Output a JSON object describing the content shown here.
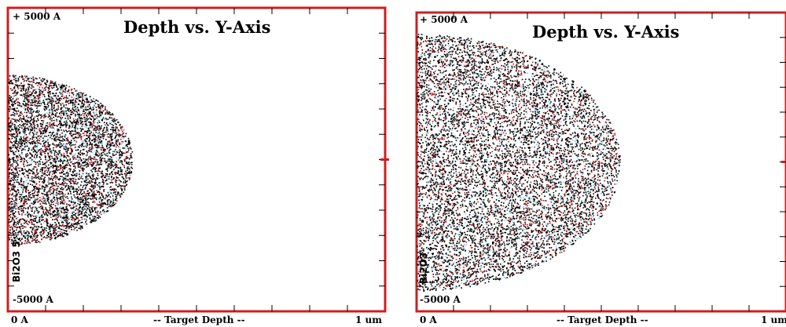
{
  "chart_data": [
    {
      "type": "scatter",
      "title": "Depth vs. Y-Axis",
      "y_top_label": "+ 5000 A",
      "y_bottom_label": "-5000 A",
      "x_left_label": "0 A",
      "x_center_label": "-- Target Depth --",
      "x_right_label": "1 um",
      "material_label": "Bi2O3 5.",
      "xlim": [
        0,
        10000
      ],
      "ylim": [
        -5000,
        5000
      ],
      "x_unit": "A",
      "y_unit": "A",
      "grid": false,
      "series_colors": [
        "#000000",
        "#c8141e",
        "#7fd0e6"
      ],
      "cloud": {
        "x_center": 0,
        "y_center": 0,
        "x_extent": 3300,
        "y_half_extent": 2800,
        "point_count": 5200
      }
    },
    {
      "type": "scatter",
      "title": "Depth vs. Y-Axis",
      "y_top_label": "+ 5000 A",
      "y_bottom_label": "-5000 A",
      "x_left_label": "0 A",
      "x_center_label": "-- Target Depth --",
      "x_right_label": "1 um",
      "material_label": "Bi2O3",
      "xlim": [
        0,
        10000
      ],
      "ylim": [
        -5000,
        5000
      ],
      "x_unit": "A",
      "y_unit": "A",
      "grid": false,
      "series_colors": [
        "#000000",
        "#c8141e",
        "#7fd0e6"
      ],
      "cloud": {
        "x_center": 0,
        "y_center": 0,
        "x_extent": 5500,
        "y_half_extent": 4300,
        "point_count": 9000
      }
    }
  ]
}
